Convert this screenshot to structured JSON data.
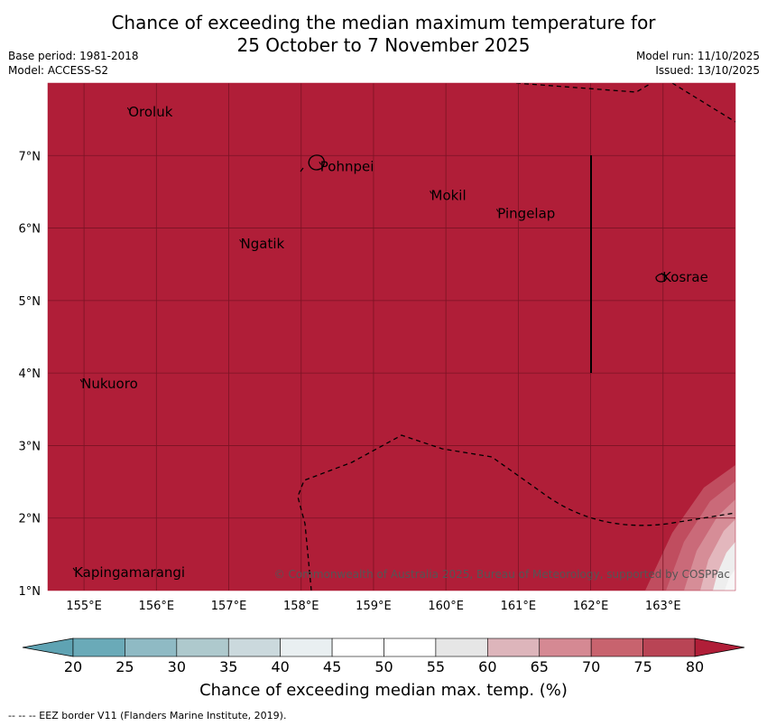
{
  "title_line1": "Chance of exceeding the median maximum temperature for",
  "title_line2": "25 October to 7 November 2025",
  "base_period": "Base period: 1981-2018",
  "model": "Model: ACCESS-S2",
  "model_run": "Model run: 11/10/2025",
  "issued": "Issued: 13/10/2025",
  "credit": "© Commonwealth of Australia 2025, Bureau of Meteorology, supported by COSPPac",
  "colors": {
    "map_fill": "#b01e38",
    "grid": "#7a1324"
  },
  "map": {
    "lon_range": [
      154.5,
      164.0
    ],
    "lat_range": [
      1.0,
      8.0
    ],
    "lon_ticks": [
      "155°E",
      "156°E",
      "157°E",
      "158°E",
      "159°E",
      "160°E",
      "161°E",
      "162°E",
      "163°E"
    ],
    "lat_ticks": [
      "1°N",
      "2°N",
      "3°N",
      "4°N",
      "5°N",
      "6°N",
      "7°N"
    ],
    "places": [
      {
        "name": "Oroluk",
        "lon": 155.6,
        "lat": 7.6
      },
      {
        "name": "Pohnpei",
        "lon": 158.25,
        "lat": 6.85
      },
      {
        "name": "Mokil",
        "lon": 159.78,
        "lat": 6.45
      },
      {
        "name": "Pingelap",
        "lon": 160.7,
        "lat": 6.2
      },
      {
        "name": "Ngatik",
        "lon": 157.15,
        "lat": 5.78
      },
      {
        "name": "Kosrae",
        "lon": 162.98,
        "lat": 5.32
      },
      {
        "name": "Nukuoro",
        "lon": 154.95,
        "lat": 3.85
      },
      {
        "name": "Kapingamarangi",
        "lon": 154.85,
        "lat": 1.25
      }
    ]
  },
  "colorbar": {
    "ticks": [
      "20",
      "25",
      "30",
      "35",
      "40",
      "45",
      "50",
      "55",
      "60",
      "65",
      "70",
      "75",
      "80"
    ],
    "colors": [
      "#6aaab8",
      "#8fbac4",
      "#aec9cd",
      "#cbd9dd",
      "#e9eff1",
      "#ffffff",
      "#ffffff",
      "#e6e6e6",
      "#ddb5bb",
      "#d58993",
      "#c8636e",
      "#b94455"
    ],
    "under_color": "#5fa3b3",
    "over_color": "#b01e38",
    "label": "Chance of exceeding median max. temp. (%)"
  },
  "footnote": "--  --  -- EEZ border V11 (Flanders Marine Institute, 2019)."
}
